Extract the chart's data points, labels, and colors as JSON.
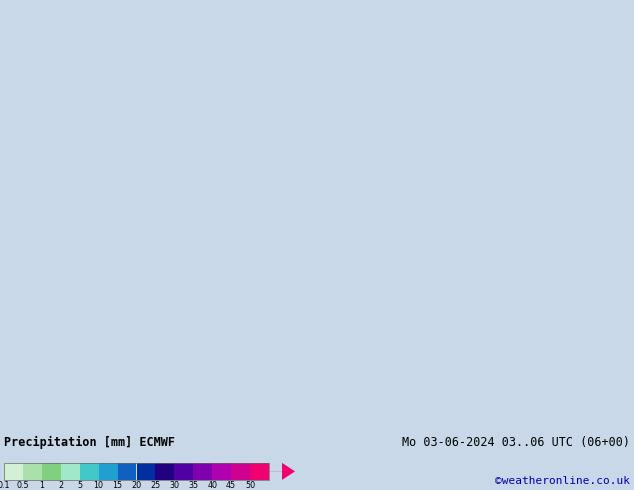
{
  "title_left": "Precipitation [mm] ECMWF",
  "title_right": "Mo 03-06-2024 03..06 UTC (06+00)",
  "credit": "©weatheronline.co.uk",
  "colorbar_labels": [
    "0.1",
    "0.5",
    "1",
    "2",
    "5",
    "10",
    "15",
    "20",
    "25",
    "30",
    "35",
    "40",
    "45",
    "50"
  ],
  "colorbar_colors": [
    "#d4f0d4",
    "#aae0aa",
    "#80d080",
    "#a0e8c8",
    "#40c8c8",
    "#20a0d0",
    "#1060c0",
    "#0030a0",
    "#200080",
    "#5000a0",
    "#8000b0",
    "#b000b0",
    "#d00090",
    "#f00070"
  ],
  "land_color": "#c8e8b0",
  "ocean_color": "#c8d8e8",
  "bg_color": "#c8d8e8",
  "border_color": "#808080",
  "blue_contour": "#0000cc",
  "red_contour": "#cc0000",
  "extent": [
    -25,
    65,
    -40,
    42
  ],
  "figsize": [
    6.34,
    4.9
  ],
  "dpi": 100
}
